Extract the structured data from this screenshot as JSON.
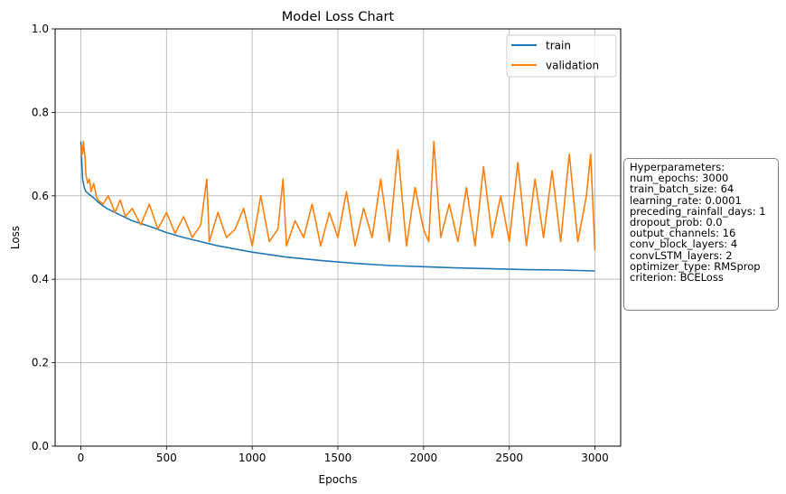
{
  "chart_data": {
    "type": "line",
    "title": "Model Loss Chart",
    "xlabel": "Epochs",
    "ylabel": "Loss",
    "xlim": [
      -150,
      3150
    ],
    "ylim": [
      0.0,
      1.0
    ],
    "xticks": [
      0,
      500,
      1000,
      1500,
      2000,
      2500,
      3000
    ],
    "yticks": [
      0.0,
      0.2,
      0.4,
      0.6,
      0.8,
      1.0
    ],
    "xtick_labels": [
      "0",
      "500",
      "1000",
      "1500",
      "2000",
      "2500",
      "3000"
    ],
    "ytick_labels": [
      "0.0",
      "0.2",
      "0.4",
      "0.6",
      "0.8",
      "1.0"
    ],
    "grid": true,
    "legend_position": "top-right",
    "series": [
      {
        "name": "train",
        "color": "#1f77b4",
        "x": [
          0,
          10,
          20,
          30,
          50,
          75,
          100,
          150,
          200,
          300,
          400,
          500,
          600,
          700,
          800,
          1000,
          1200,
          1400,
          1600,
          1800,
          2000,
          2200,
          2400,
          2600,
          2800,
          3000
        ],
        "values": [
          0.73,
          0.64,
          0.62,
          0.61,
          0.603,
          0.595,
          0.585,
          0.57,
          0.56,
          0.54,
          0.527,
          0.512,
          0.5,
          0.49,
          0.48,
          0.465,
          0.453,
          0.445,
          0.438,
          0.433,
          0.43,
          0.427,
          0.425,
          0.423,
          0.422,
          0.42
        ]
      },
      {
        "name": "validation",
        "color": "#ff7f0e",
        "x": [
          0,
          5,
          10,
          15,
          20,
          25,
          30,
          40,
          50,
          60,
          75,
          90,
          100,
          130,
          160,
          200,
          230,
          260,
          300,
          350,
          400,
          450,
          500,
          550,
          600,
          650,
          700,
          735,
          750,
          800,
          850,
          900,
          950,
          1000,
          1050,
          1100,
          1150,
          1180,
          1200,
          1250,
          1300,
          1350,
          1400,
          1450,
          1500,
          1550,
          1600,
          1650,
          1700,
          1750,
          1800,
          1850,
          1900,
          1950,
          2000,
          2030,
          2060,
          2100,
          2150,
          2200,
          2250,
          2300,
          2350,
          2400,
          2450,
          2500,
          2550,
          2600,
          2650,
          2700,
          2750,
          2800,
          2850,
          2900,
          2950,
          2975,
          3000
        ],
        "values": [
          0.69,
          0.72,
          0.7,
          0.73,
          0.71,
          0.69,
          0.65,
          0.63,
          0.64,
          0.61,
          0.63,
          0.6,
          0.59,
          0.58,
          0.6,
          0.56,
          0.59,
          0.55,
          0.57,
          0.53,
          0.58,
          0.52,
          0.56,
          0.51,
          0.55,
          0.5,
          0.53,
          0.64,
          0.49,
          0.56,
          0.5,
          0.52,
          0.57,
          0.48,
          0.6,
          0.49,
          0.52,
          0.64,
          0.48,
          0.54,
          0.5,
          0.58,
          0.48,
          0.56,
          0.5,
          0.61,
          0.48,
          0.57,
          0.5,
          0.64,
          0.49,
          0.71,
          0.48,
          0.62,
          0.52,
          0.49,
          0.73,
          0.5,
          0.58,
          0.49,
          0.62,
          0.48,
          0.67,
          0.5,
          0.6,
          0.49,
          0.68,
          0.48,
          0.64,
          0.5,
          0.66,
          0.49,
          0.7,
          0.49,
          0.6,
          0.7,
          0.47
        ]
      }
    ]
  },
  "hyperparameters": {
    "lines": [
      "Hyperparameters:",
      "num_epochs: 3000",
      "train_batch_size: 64",
      "learning_rate: 0.0001",
      "preceding_rainfall_days: 1",
      "dropout_prob: 0.0",
      "output_channels: 16",
      "conv_block_layers: 4",
      "convLSTM_layers: 2",
      "optimizer_type: RMSprop",
      "criterion: BCELoss"
    ]
  }
}
